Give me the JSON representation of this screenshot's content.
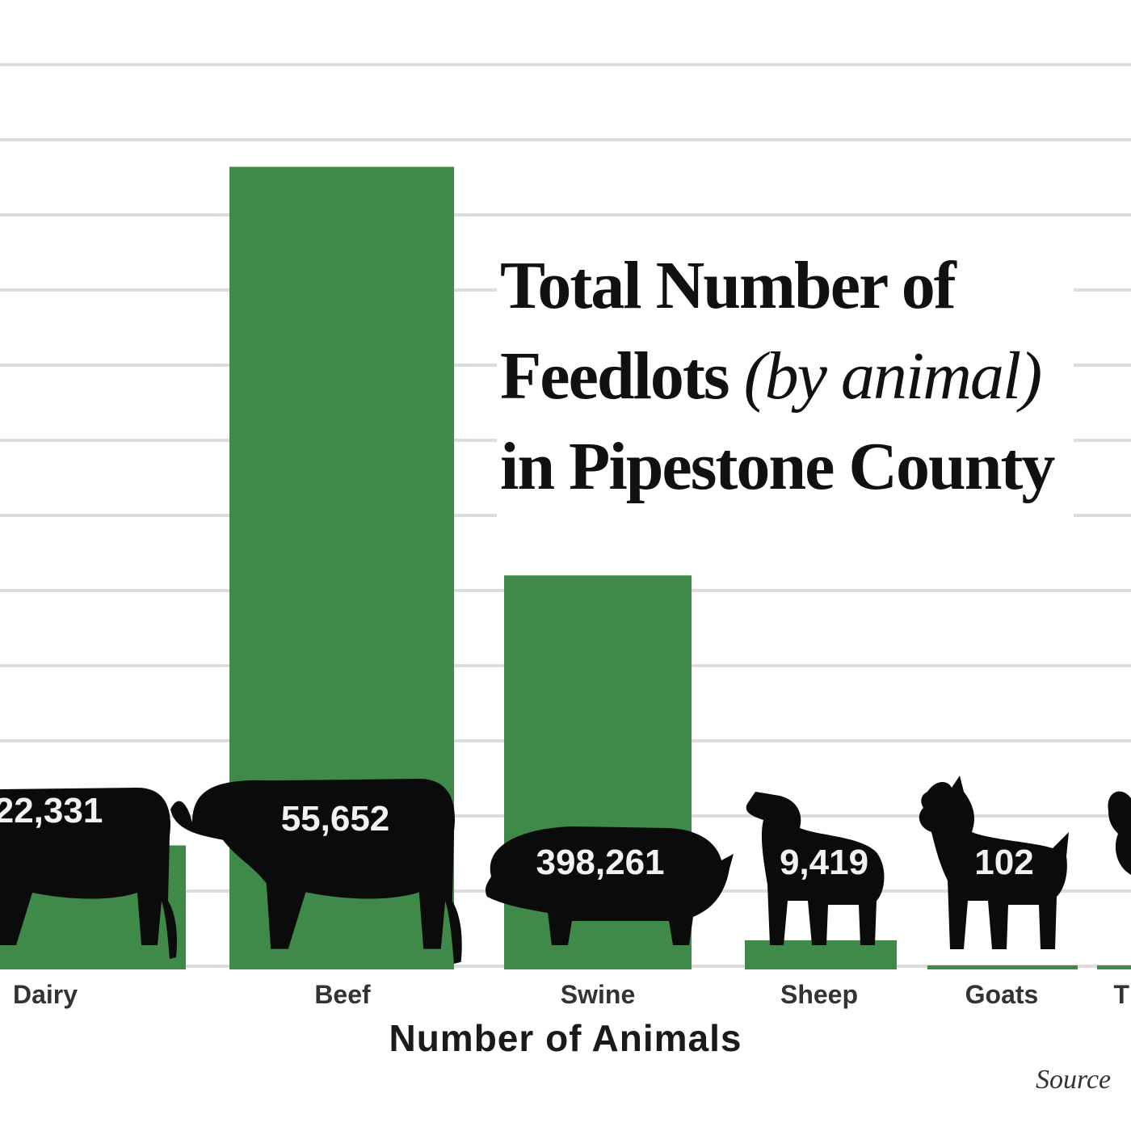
{
  "title": {
    "line1": "Total Number of",
    "line2_plain": "Feedlots ",
    "line2_italic": "(by animal)",
    "line3": "in Pipestone County"
  },
  "xlabel": "Number of Animals",
  "source": "Source",
  "colors": {
    "bar": "#3f8a48",
    "silhouette": "#0b0b0b",
    "grid": "#dcdcdc",
    "value_text": "#f2f2f2",
    "category_text": "#333333"
  },
  "chart_data": {
    "type": "bar",
    "title": "Total Number of Feedlots (by animal) in Pipestone County",
    "xlabel": "Number of Animals",
    "ylabel": "",
    "categories": [
      "Dairy",
      "Beef",
      "Swine",
      "Sheep",
      "Goats",
      "T"
    ],
    "values": [
      17,
      110,
      54,
      4,
      0.5,
      0.5
    ],
    "ylim": [
      0,
      124
    ],
    "grid": true,
    "animal_counts": [
      "22,331",
      "55,652",
      "398,261",
      "9,419",
      "102",
      ""
    ],
    "icons": [
      "cow-icon",
      "cow-icon",
      "pig-icon",
      "sheep-icon",
      "goat-icon",
      "turkey-icon"
    ]
  }
}
